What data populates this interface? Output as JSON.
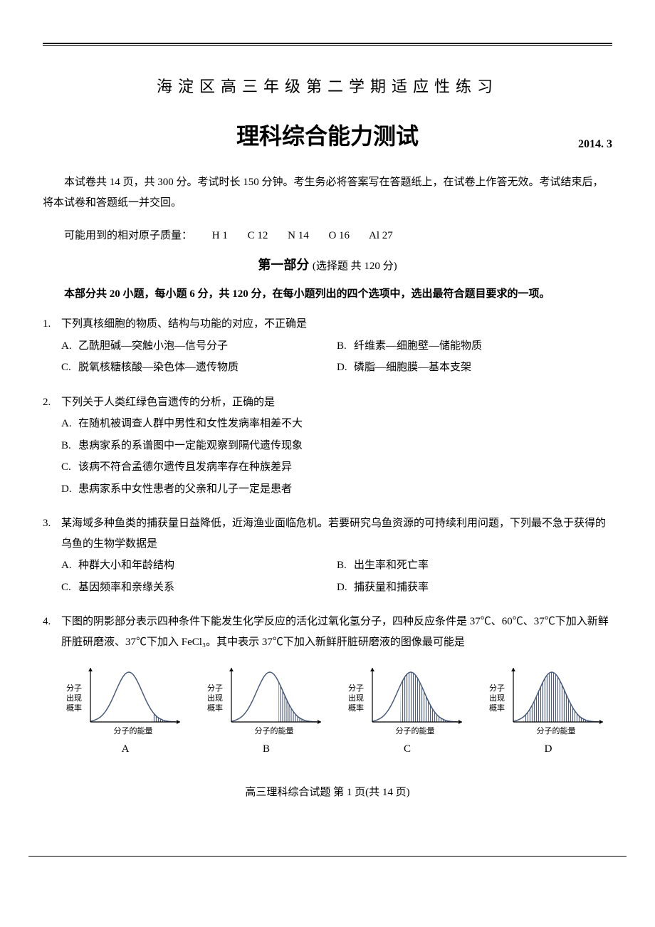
{
  "header": {
    "title1": "海淀区高三年级第二学期适应性练习",
    "title2": "理科综合能力测试",
    "date": "2014. 3"
  },
  "intro": "本试卷共 14 页，共 300 分。考试时长 150 分钟。考生务必将答案写在答题纸上，在试卷上作答无效。考试结束后，将本试卷和答题纸一并交回。",
  "atomic_mass": {
    "label": "可能用到的相对原子质量：",
    "items": [
      "H  1",
      "C  12",
      "N  14",
      "O  16",
      "Al  27"
    ]
  },
  "section": {
    "label": "第一部分",
    "paren": "(选择题  共 120 分)"
  },
  "instructions": "本部分共 20 小题，每小题 6 分，共 120 分，在每小题列出的四个选项中，选出最符合题目要求的一项。",
  "questions": [
    {
      "num": "1.",
      "stem": "下列真核细胞的物质、结构与功能的对应，不正确是",
      "layout": "2col",
      "options": [
        {
          "label": "A.",
          "text": "乙酰胆碱—突触小泡—信号分子"
        },
        {
          "label": "B.",
          "text": "纤维素—细胞壁—储能物质"
        },
        {
          "label": "C.",
          "text": "脱氧核糖核酸—染色体—遗传物质"
        },
        {
          "label": "D.",
          "text": "磷脂—细胞膜—基本支架"
        }
      ]
    },
    {
      "num": "2.",
      "stem": "下列关于人类红绿色盲遗传的分析，正确的是",
      "layout": "1col",
      "options": [
        {
          "label": "A.",
          "text": "在随机被调查人群中男性和女性发病率相差不大"
        },
        {
          "label": "B.",
          "text": "患病家系的系谱图中一定能观察到隔代遗传现象"
        },
        {
          "label": "C.",
          "text": "该病不符合孟德尔遗传且发病率存在种族差异"
        },
        {
          "label": "D.",
          "text": "患病家系中女性患者的父亲和儿子一定是患者"
        }
      ]
    },
    {
      "num": "3.",
      "stem": "某海域多种鱼类的捕获量日益降低，近海渔业面临危机。若要研究乌鱼资源的可持续利用问题，下列最不急于获得的乌鱼的生物学数据是",
      "layout": "2col",
      "options": [
        {
          "label": "A.",
          "text": "种群大小和年龄结构"
        },
        {
          "label": "B.",
          "text": "出生率和死亡率"
        },
        {
          "label": "C.",
          "text": "基因频率和亲缘关系"
        },
        {
          "label": "D.",
          "text": "捕获量和捕获率"
        }
      ]
    },
    {
      "num": "4.",
      "stem": "下图的阴影部分表示四种条件下能发生化学反应的活化过氧化氢分子，四种反应条件是 37℃、60℃、37℃下加入新鲜肝脏研磨液、37℃下加入 FeCl₃。其中表示 37℃下加入新鲜肝脏研磨液的图像最可能是",
      "layout": "charts",
      "options": [
        {
          "label": "A"
        },
        {
          "label": "B"
        },
        {
          "label": "C"
        },
        {
          "label": "D"
        }
      ]
    }
  ],
  "charts": {
    "y_label_line1": "分子",
    "y_label_line2": "出现",
    "y_label_line3": "概率",
    "x_label": "分子的能量",
    "curve_color": "#4a5a7a",
    "hatch_color": "#3a4a6a",
    "axis_color": "#000000",
    "bg": "#ffffff",
    "hatch_start_frac": {
      "A": 0.72,
      "B": 0.55,
      "C": 0.33,
      "D": 0.12
    }
  },
  "footer": "高三理科综合试题 第 1 页(共 14 页)"
}
